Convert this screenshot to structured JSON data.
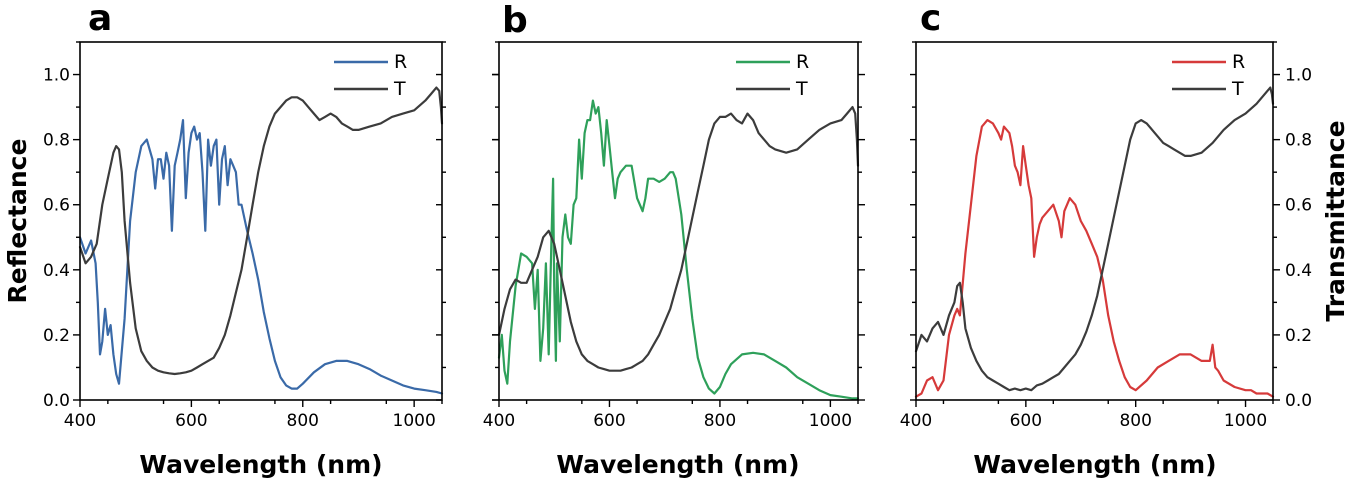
{
  "colors": {
    "blue": "#3a6aa8",
    "green": "#2ea05a",
    "red": "#d63a3a",
    "gray": "#3c3c3c"
  },
  "chart_data": [
    {
      "type": "line",
      "panel_label": "a",
      "xlabel": "Wavelength (nm)",
      "ylabel": "Reflectance",
      "right_ylabel": "",
      "xlim": [
        400,
        1050
      ],
      "ylim": [
        0,
        1.1
      ],
      "xticks": [
        400,
        600,
        800,
        1000
      ],
      "yticks": [
        0.0,
        0.2,
        0.4,
        0.6,
        0.8,
        1.0
      ],
      "ytick_labels_side": "left",
      "legend_position": "top-right",
      "series": [
        {
          "name": "R",
          "color": "blue",
          "x": [
            400,
            410,
            420,
            428,
            432,
            436,
            440,
            445,
            450,
            455,
            460,
            465,
            470,
            480,
            490,
            500,
            510,
            520,
            530,
            535,
            540,
            545,
            550,
            555,
            560,
            565,
            570,
            575,
            580,
            585,
            590,
            595,
            600,
            605,
            610,
            615,
            620,
            625,
            630,
            635,
            640,
            645,
            650,
            655,
            660,
            665,
            670,
            675,
            680,
            685,
            690,
            700,
            710,
            720,
            730,
            740,
            750,
            760,
            770,
            780,
            790,
            800,
            820,
            840,
            860,
            880,
            900,
            920,
            940,
            960,
            980,
            1000,
            1020,
            1040,
            1050
          ],
          "y": [
            0.5,
            0.45,
            0.49,
            0.42,
            0.3,
            0.14,
            0.18,
            0.28,
            0.2,
            0.23,
            0.14,
            0.08,
            0.05,
            0.25,
            0.55,
            0.7,
            0.78,
            0.8,
            0.74,
            0.65,
            0.74,
            0.74,
            0.68,
            0.76,
            0.72,
            0.52,
            0.72,
            0.76,
            0.8,
            0.86,
            0.62,
            0.76,
            0.82,
            0.84,
            0.8,
            0.82,
            0.7,
            0.52,
            0.8,
            0.72,
            0.78,
            0.8,
            0.6,
            0.74,
            0.78,
            0.66,
            0.74,
            0.72,
            0.7,
            0.6,
            0.6,
            0.52,
            0.45,
            0.37,
            0.27,
            0.19,
            0.12,
            0.07,
            0.045,
            0.035,
            0.035,
            0.05,
            0.085,
            0.11,
            0.12,
            0.12,
            0.11,
            0.095,
            0.075,
            0.06,
            0.045,
            0.035,
            0.03,
            0.025,
            0.02
          ]
        },
        {
          "name": "T",
          "color": "gray",
          "x": [
            400,
            410,
            420,
            430,
            440,
            450,
            460,
            465,
            470,
            475,
            480,
            490,
            500,
            510,
            520,
            530,
            540,
            550,
            560,
            570,
            580,
            590,
            600,
            610,
            620,
            630,
            640,
            650,
            660,
            670,
            680,
            690,
            700,
            710,
            720,
            730,
            740,
            750,
            760,
            770,
            780,
            790,
            800,
            810,
            820,
            830,
            840,
            850,
            860,
            870,
            880,
            890,
            900,
            920,
            940,
            960,
            980,
            1000,
            1020,
            1030,
            1040,
            1045,
            1048,
            1050
          ],
          "y": [
            0.47,
            0.42,
            0.44,
            0.48,
            0.6,
            0.68,
            0.76,
            0.78,
            0.77,
            0.7,
            0.55,
            0.36,
            0.22,
            0.15,
            0.12,
            0.1,
            0.09,
            0.085,
            0.082,
            0.08,
            0.082,
            0.085,
            0.09,
            0.1,
            0.11,
            0.12,
            0.13,
            0.16,
            0.2,
            0.26,
            0.33,
            0.4,
            0.5,
            0.6,
            0.7,
            0.78,
            0.84,
            0.88,
            0.9,
            0.92,
            0.93,
            0.93,
            0.92,
            0.9,
            0.88,
            0.86,
            0.87,
            0.88,
            0.87,
            0.85,
            0.84,
            0.83,
            0.83,
            0.84,
            0.85,
            0.87,
            0.88,
            0.89,
            0.92,
            0.94,
            0.96,
            0.95,
            0.9,
            0.85
          ]
        }
      ]
    },
    {
      "type": "line",
      "panel_label": "b",
      "xlabel": "Wavelength (nm)",
      "ylabel": "",
      "right_ylabel": "",
      "xlim": [
        400,
        1050
      ],
      "ylim": [
        0,
        1.1
      ],
      "xticks": [
        400,
        600,
        800,
        1000
      ],
      "yticks": [
        0.0,
        0.2,
        0.4,
        0.6,
        0.8,
        1.0
      ],
      "ytick_labels_side": "none",
      "legend_position": "top-right",
      "series": [
        {
          "name": "R",
          "color": "green",
          "x": [
            400,
            405,
            410,
            415,
            420,
            430,
            440,
            450,
            460,
            465,
            470,
            475,
            480,
            485,
            490,
            495,
            498,
            500,
            503,
            505,
            510,
            515,
            520,
            525,
            530,
            535,
            540,
            545,
            550,
            555,
            560,
            565,
            570,
            575,
            580,
            585,
            590,
            595,
            600,
            605,
            610,
            615,
            620,
            630,
            640,
            650,
            660,
            665,
            670,
            680,
            690,
            700,
            710,
            715,
            720,
            730,
            740,
            750,
            760,
            770,
            780,
            790,
            800,
            810,
            820,
            840,
            860,
            880,
            900,
            920,
            940,
            960,
            980,
            1000,
            1020,
            1040,
            1050
          ],
          "y": [
            0.13,
            0.2,
            0.09,
            0.05,
            0.18,
            0.35,
            0.45,
            0.44,
            0.42,
            0.28,
            0.4,
            0.12,
            0.22,
            0.42,
            0.14,
            0.5,
            0.68,
            0.35,
            0.12,
            0.42,
            0.18,
            0.5,
            0.57,
            0.5,
            0.48,
            0.6,
            0.62,
            0.8,
            0.68,
            0.82,
            0.86,
            0.86,
            0.92,
            0.88,
            0.9,
            0.82,
            0.72,
            0.86,
            0.78,
            0.7,
            0.62,
            0.68,
            0.7,
            0.72,
            0.72,
            0.62,
            0.58,
            0.62,
            0.68,
            0.68,
            0.67,
            0.68,
            0.7,
            0.7,
            0.68,
            0.57,
            0.4,
            0.25,
            0.13,
            0.07,
            0.035,
            0.02,
            0.04,
            0.08,
            0.11,
            0.14,
            0.145,
            0.14,
            0.12,
            0.1,
            0.07,
            0.05,
            0.03,
            0.015,
            0.01,
            0.005,
            0.005
          ]
        },
        {
          "name": "T",
          "color": "gray",
          "x": [
            400,
            410,
            420,
            430,
            440,
            450,
            460,
            470,
            480,
            490,
            500,
            510,
            520,
            530,
            540,
            550,
            560,
            570,
            580,
            590,
            600,
            610,
            620,
            630,
            640,
            650,
            660,
            670,
            680,
            690,
            700,
            710,
            720,
            730,
            740,
            750,
            760,
            770,
            780,
            790,
            800,
            810,
            820,
            830,
            840,
            850,
            860,
            870,
            880,
            890,
            900,
            920,
            940,
            960,
            980,
            1000,
            1020,
            1030,
            1040,
            1045,
            1048,
            1050
          ],
          "y": [
            0.2,
            0.28,
            0.34,
            0.37,
            0.36,
            0.36,
            0.4,
            0.44,
            0.5,
            0.52,
            0.48,
            0.4,
            0.32,
            0.24,
            0.18,
            0.14,
            0.12,
            0.11,
            0.1,
            0.095,
            0.09,
            0.09,
            0.09,
            0.095,
            0.1,
            0.11,
            0.12,
            0.14,
            0.17,
            0.2,
            0.24,
            0.28,
            0.34,
            0.4,
            0.48,
            0.56,
            0.64,
            0.72,
            0.8,
            0.85,
            0.87,
            0.87,
            0.88,
            0.86,
            0.85,
            0.88,
            0.86,
            0.82,
            0.8,
            0.78,
            0.77,
            0.76,
            0.77,
            0.8,
            0.83,
            0.85,
            0.86,
            0.88,
            0.9,
            0.88,
            0.8,
            0.72
          ]
        }
      ]
    },
    {
      "type": "line",
      "panel_label": "c",
      "xlabel": "Wavelength (nm)",
      "ylabel": "",
      "right_ylabel": "Transmittance",
      "xlim": [
        400,
        1050
      ],
      "ylim": [
        0,
        1.1
      ],
      "xticks": [
        400,
        600,
        800,
        1000
      ],
      "yticks": [
        0.0,
        0.2,
        0.4,
        0.6,
        0.8,
        1.0
      ],
      "ytick_labels_side": "right",
      "legend_position": "top-right",
      "series": [
        {
          "name": "R",
          "color": "red",
          "x": [
            400,
            410,
            420,
            430,
            440,
            450,
            460,
            470,
            475,
            480,
            490,
            500,
            510,
            520,
            530,
            540,
            550,
            555,
            560,
            570,
            575,
            580,
            585,
            590,
            595,
            600,
            605,
            610,
            615,
            620,
            625,
            630,
            640,
            650,
            660,
            665,
            670,
            680,
            690,
            700,
            710,
            720,
            730,
            740,
            750,
            760,
            770,
            780,
            790,
            800,
            820,
            840,
            860,
            880,
            900,
            920,
            935,
            940,
            945,
            950,
            960,
            980,
            1000,
            1010,
            1020,
            1040,
            1050
          ],
          "y": [
            0.01,
            0.02,
            0.06,
            0.07,
            0.03,
            0.06,
            0.2,
            0.26,
            0.28,
            0.26,
            0.45,
            0.6,
            0.75,
            0.84,
            0.86,
            0.85,
            0.82,
            0.8,
            0.84,
            0.82,
            0.78,
            0.72,
            0.7,
            0.66,
            0.78,
            0.72,
            0.66,
            0.62,
            0.44,
            0.5,
            0.54,
            0.56,
            0.58,
            0.6,
            0.55,
            0.5,
            0.58,
            0.62,
            0.6,
            0.55,
            0.52,
            0.48,
            0.44,
            0.37,
            0.26,
            0.18,
            0.12,
            0.07,
            0.04,
            0.03,
            0.06,
            0.1,
            0.12,
            0.14,
            0.14,
            0.12,
            0.12,
            0.17,
            0.1,
            0.09,
            0.06,
            0.04,
            0.03,
            0.03,
            0.02,
            0.02,
            0.01
          ]
        },
        {
          "name": "T",
          "color": "gray",
          "x": [
            400,
            410,
            420,
            430,
            440,
            450,
            460,
            470,
            475,
            480,
            485,
            490,
            500,
            510,
            520,
            530,
            540,
            550,
            560,
            570,
            580,
            590,
            600,
            610,
            620,
            630,
            640,
            650,
            660,
            670,
            680,
            690,
            700,
            710,
            720,
            730,
            740,
            750,
            760,
            770,
            780,
            790,
            800,
            810,
            820,
            830,
            840,
            850,
            860,
            870,
            880,
            890,
            900,
            920,
            940,
            960,
            980,
            1000,
            1020,
            1030,
            1040,
            1045,
            1048,
            1050
          ],
          "y": [
            0.15,
            0.2,
            0.18,
            0.22,
            0.24,
            0.2,
            0.26,
            0.3,
            0.35,
            0.36,
            0.3,
            0.22,
            0.16,
            0.12,
            0.09,
            0.07,
            0.06,
            0.05,
            0.04,
            0.03,
            0.035,
            0.03,
            0.035,
            0.03,
            0.045,
            0.05,
            0.06,
            0.07,
            0.08,
            0.1,
            0.12,
            0.14,
            0.17,
            0.21,
            0.26,
            0.32,
            0.4,
            0.48,
            0.56,
            0.64,
            0.72,
            0.8,
            0.85,
            0.86,
            0.85,
            0.83,
            0.81,
            0.79,
            0.78,
            0.77,
            0.76,
            0.75,
            0.75,
            0.76,
            0.79,
            0.83,
            0.86,
            0.88,
            0.91,
            0.93,
            0.95,
            0.96,
            0.94,
            0.91
          ]
        }
      ]
    }
  ]
}
